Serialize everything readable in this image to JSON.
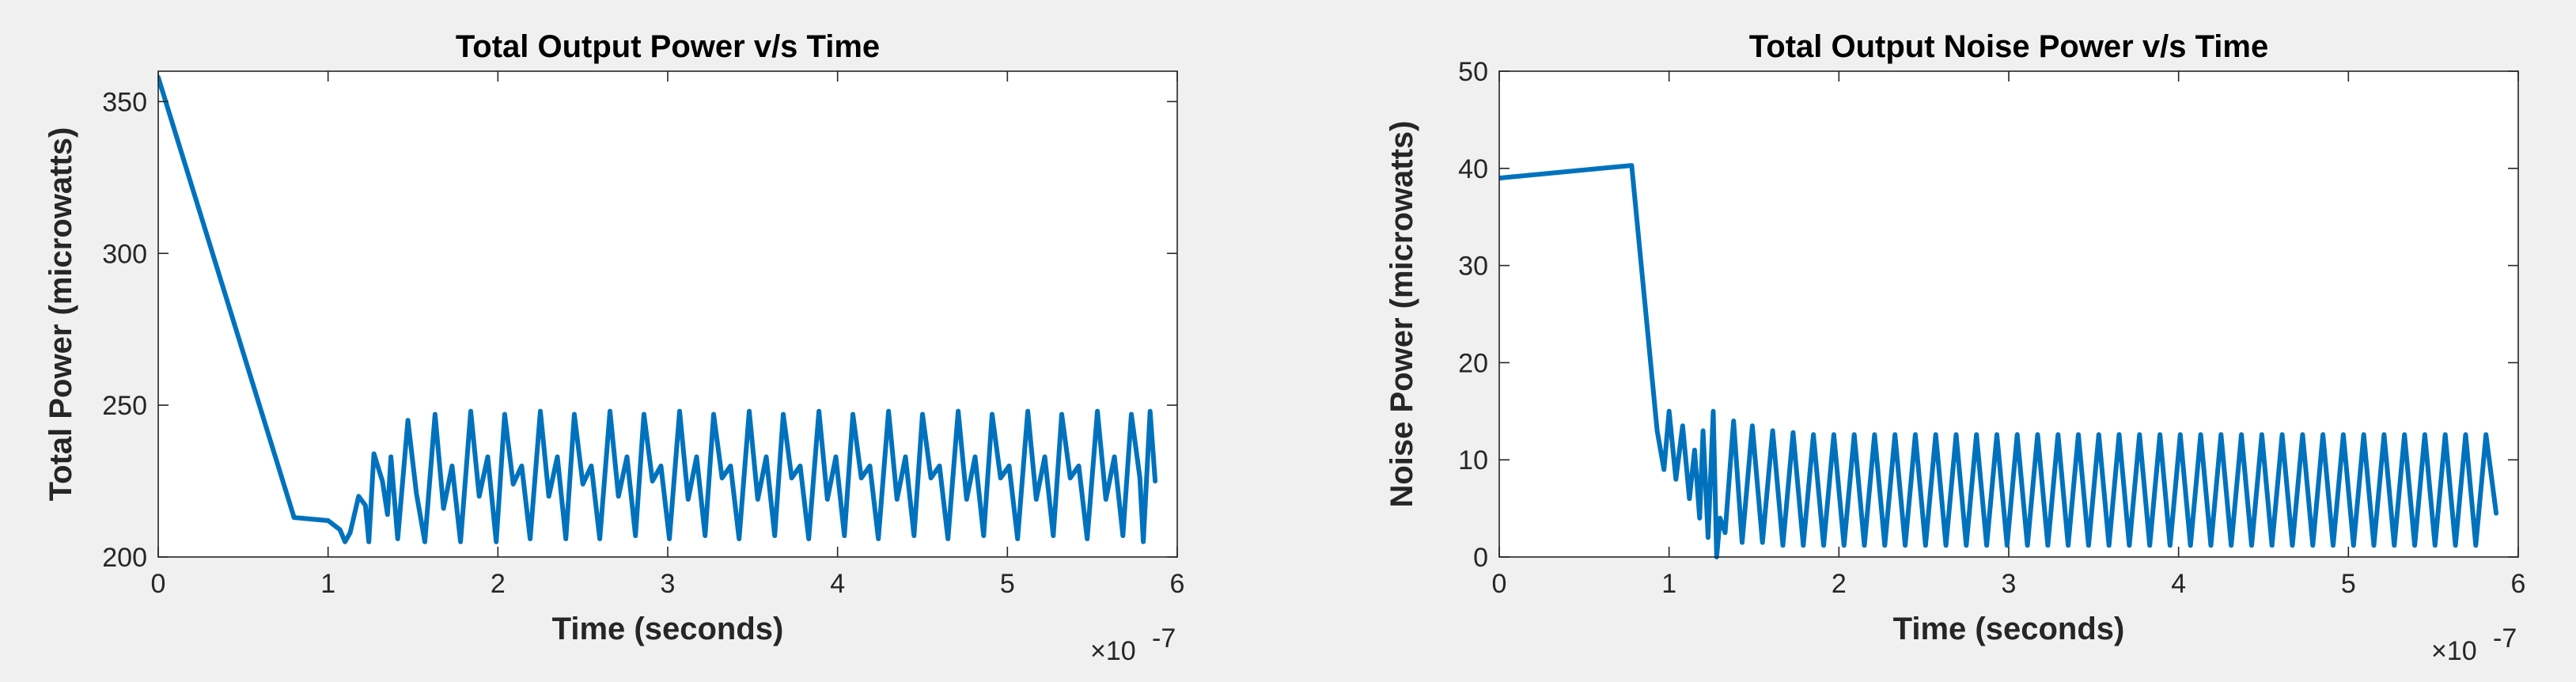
{
  "chart_data": [
    {
      "type": "line",
      "title": "Total Output Power v/s Time",
      "xlabel": "Time (seconds)",
      "ylabel": "Total Power (microwatts)",
      "x_exponent_label": "×10",
      "x_exponent_power": "-7",
      "x_unit_scale": 1e-07,
      "xlim": [
        0,
        6
      ],
      "ylim": [
        200,
        360
      ],
      "xticks": [
        0,
        1,
        2,
        3,
        4,
        5,
        6
      ],
      "xtick_labels": [
        "0",
        "1",
        "2",
        "3",
        "4",
        "5",
        "6"
      ],
      "yticks": [
        200,
        250,
        300,
        350
      ],
      "ytick_labels": [
        "200",
        "250",
        "300",
        "350"
      ],
      "grid": false,
      "color": "#0072BD",
      "series": [
        {
          "points": [
            [
              0,
              358
            ],
            [
              0.8,
              213
            ],
            [
              1.0,
              212
            ],
            [
              1.07,
              209
            ],
            [
              1.1,
              205
            ],
            [
              1.13,
              208
            ],
            [
              1.18,
              220
            ],
            [
              1.22,
              217
            ],
            [
              1.24,
              205
            ],
            [
              1.27,
              234
            ],
            [
              1.32,
              225
            ],
            [
              1.35,
              214
            ],
            [
              1.37,
              233
            ],
            [
              1.41,
              206
            ],
            [
              1.47,
              245
            ],
            [
              1.52,
              221
            ],
            [
              1.57,
              205
            ],
            [
              1.63,
              247
            ],
            [
              1.68,
              216
            ],
            [
              1.73,
              230
            ],
            [
              1.78,
              205
            ],
            [
              1.84,
              248
            ],
            [
              1.89,
              220
            ],
            [
              1.94,
              233
            ],
            [
              1.99,
              205
            ],
            [
              2.04,
              247
            ],
            [
              2.09,
              224
            ],
            [
              2.14,
              230
            ],
            [
              2.19,
              206
            ],
            [
              2.25,
              248
            ],
            [
              2.3,
              220
            ],
            [
              2.35,
              233
            ],
            [
              2.4,
              206
            ],
            [
              2.45,
              247
            ],
            [
              2.5,
              224
            ],
            [
              2.55,
              230
            ],
            [
              2.6,
              206
            ],
            [
              2.66,
              248
            ],
            [
              2.71,
              220
            ],
            [
              2.76,
              233
            ],
            [
              2.81,
              207
            ],
            [
              2.86,
              247
            ],
            [
              2.91,
              225
            ],
            [
              2.96,
              230
            ],
            [
              3.01,
              206
            ],
            [
              3.07,
              248
            ],
            [
              3.12,
              219
            ],
            [
              3.17,
              233
            ],
            [
              3.22,
              207
            ],
            [
              3.27,
              247
            ],
            [
              3.32,
              226
            ],
            [
              3.37,
              230
            ],
            [
              3.42,
              206
            ],
            [
              3.48,
              248
            ],
            [
              3.53,
              219
            ],
            [
              3.58,
              233
            ],
            [
              3.63,
              207
            ],
            [
              3.68,
              247
            ],
            [
              3.73,
              226
            ],
            [
              3.78,
              230
            ],
            [
              3.83,
              206
            ],
            [
              3.89,
              248
            ],
            [
              3.94,
              219
            ],
            [
              3.99,
              233
            ],
            [
              4.04,
              207
            ],
            [
              4.09,
              247
            ],
            [
              4.14,
              226
            ],
            [
              4.19,
              230
            ],
            [
              4.24,
              206
            ],
            [
              4.3,
              248
            ],
            [
              4.35,
              219
            ],
            [
              4.4,
              233
            ],
            [
              4.45,
              207
            ],
            [
              4.5,
              247
            ],
            [
              4.55,
              226
            ],
            [
              4.6,
              230
            ],
            [
              4.65,
              206
            ],
            [
              4.71,
              248
            ],
            [
              4.76,
              219
            ],
            [
              4.81,
              233
            ],
            [
              4.86,
              207
            ],
            [
              4.91,
              247
            ],
            [
              4.96,
              226
            ],
            [
              5.01,
              230
            ],
            [
              5.06,
              206
            ],
            [
              5.12,
              248
            ],
            [
              5.17,
              219
            ],
            [
              5.22,
              233
            ],
            [
              5.27,
              207
            ],
            [
              5.32,
              247
            ],
            [
              5.37,
              226
            ],
            [
              5.42,
              230
            ],
            [
              5.47,
              206
            ],
            [
              5.53,
              248
            ],
            [
              5.58,
              219
            ],
            [
              5.63,
              233
            ],
            [
              5.68,
              207
            ],
            [
              5.73,
              247
            ],
            [
              5.78,
              226
            ],
            [
              5.8,
              205
            ],
            [
              5.84,
              248
            ],
            [
              5.87,
              225
            ]
          ]
        }
      ]
    },
    {
      "type": "line",
      "title": "Total Output Noise Power v/s Time",
      "xlabel": "Time (seconds)",
      "ylabel": "Noise Power (microwatts)",
      "x_exponent_label": "×10",
      "x_exponent_power": "-7",
      "x_unit_scale": 1e-07,
      "xlim": [
        0,
        6
      ],
      "ylim": [
        0,
        50
      ],
      "xticks": [
        0,
        1,
        2,
        3,
        4,
        5,
        6
      ],
      "xtick_labels": [
        "0",
        "1",
        "2",
        "3",
        "4",
        "5",
        "6"
      ],
      "yticks": [
        0,
        10,
        20,
        30,
        40,
        50
      ],
      "ytick_labels": [
        "0",
        "10",
        "20",
        "30",
        "40",
        "50"
      ],
      "grid": false,
      "color": "#0072BD",
      "series": [
        {
          "points": [
            [
              0,
              39
            ],
            [
              0.78,
              40.3
            ],
            [
              0.93,
              13
            ],
            [
              0.97,
              9
            ],
            [
              1.0,
              15
            ],
            [
              1.04,
              8
            ],
            [
              1.08,
              13.5
            ],
            [
              1.12,
              6
            ],
            [
              1.15,
              11
            ],
            [
              1.18,
              4
            ],
            [
              1.2,
              13
            ],
            [
              1.23,
              2
            ],
            [
              1.26,
              15
            ],
            [
              1.28,
              0
            ],
            [
              1.3,
              4
            ],
            [
              1.33,
              2.5
            ],
            [
              1.38,
              14
            ],
            [
              1.43,
              1.5
            ],
            [
              1.49,
              13.5
            ],
            [
              1.55,
              1.5
            ],
            [
              1.61,
              13
            ],
            [
              1.67,
              1.2
            ],
            [
              1.73,
              12.8
            ],
            [
              1.79,
              1.2
            ],
            [
              1.85,
              12.6
            ],
            [
              1.91,
              1.2
            ],
            [
              1.97,
              12.6
            ],
            [
              2.03,
              1.2
            ],
            [
              2.09,
              12.6
            ],
            [
              2.15,
              1.2
            ],
            [
              2.21,
              12.6
            ],
            [
              2.27,
              1.2
            ],
            [
              2.33,
              12.6
            ],
            [
              2.39,
              1.2
            ],
            [
              2.45,
              12.6
            ],
            [
              2.51,
              1.2
            ],
            [
              2.57,
              12.6
            ],
            [
              2.63,
              1.2
            ],
            [
              2.69,
              12.6
            ],
            [
              2.75,
              1.2
            ],
            [
              2.81,
              12.6
            ],
            [
              2.87,
              1.2
            ],
            [
              2.93,
              12.6
            ],
            [
              2.99,
              1.2
            ],
            [
              3.05,
              12.6
            ],
            [
              3.11,
              1.2
            ],
            [
              3.17,
              12.6
            ],
            [
              3.23,
              1.2
            ],
            [
              3.29,
              12.6
            ],
            [
              3.35,
              1.2
            ],
            [
              3.41,
              12.6
            ],
            [
              3.47,
              1.2
            ],
            [
              3.53,
              12.6
            ],
            [
              3.59,
              1.2
            ],
            [
              3.65,
              12.6
            ],
            [
              3.71,
              1.2
            ],
            [
              3.77,
              12.6
            ],
            [
              3.83,
              1.2
            ],
            [
              3.89,
              12.6
            ],
            [
              3.95,
              1.2
            ],
            [
              4.01,
              12.6
            ],
            [
              4.07,
              1.2
            ],
            [
              4.13,
              12.6
            ],
            [
              4.19,
              1.2
            ],
            [
              4.25,
              12.6
            ],
            [
              4.31,
              1.2
            ],
            [
              4.37,
              12.6
            ],
            [
              4.43,
              1.2
            ],
            [
              4.49,
              12.6
            ],
            [
              4.55,
              1.2
            ],
            [
              4.61,
              12.6
            ],
            [
              4.67,
              1.2
            ],
            [
              4.73,
              12.6
            ],
            [
              4.79,
              1.2
            ],
            [
              4.85,
              12.6
            ],
            [
              4.91,
              1.2
            ],
            [
              4.97,
              12.6
            ],
            [
              5.03,
              1.2
            ],
            [
              5.09,
              12.6
            ],
            [
              5.15,
              1.2
            ],
            [
              5.21,
              12.6
            ],
            [
              5.27,
              1.2
            ],
            [
              5.33,
              12.6
            ],
            [
              5.39,
              1.2
            ],
            [
              5.45,
              12.6
            ],
            [
              5.51,
              1.2
            ],
            [
              5.57,
              12.6
            ],
            [
              5.63,
              1.2
            ],
            [
              5.69,
              12.6
            ],
            [
              5.75,
              1.2
            ],
            [
              5.81,
              12.6
            ],
            [
              5.87,
              4.5
            ]
          ]
        }
      ]
    }
  ]
}
